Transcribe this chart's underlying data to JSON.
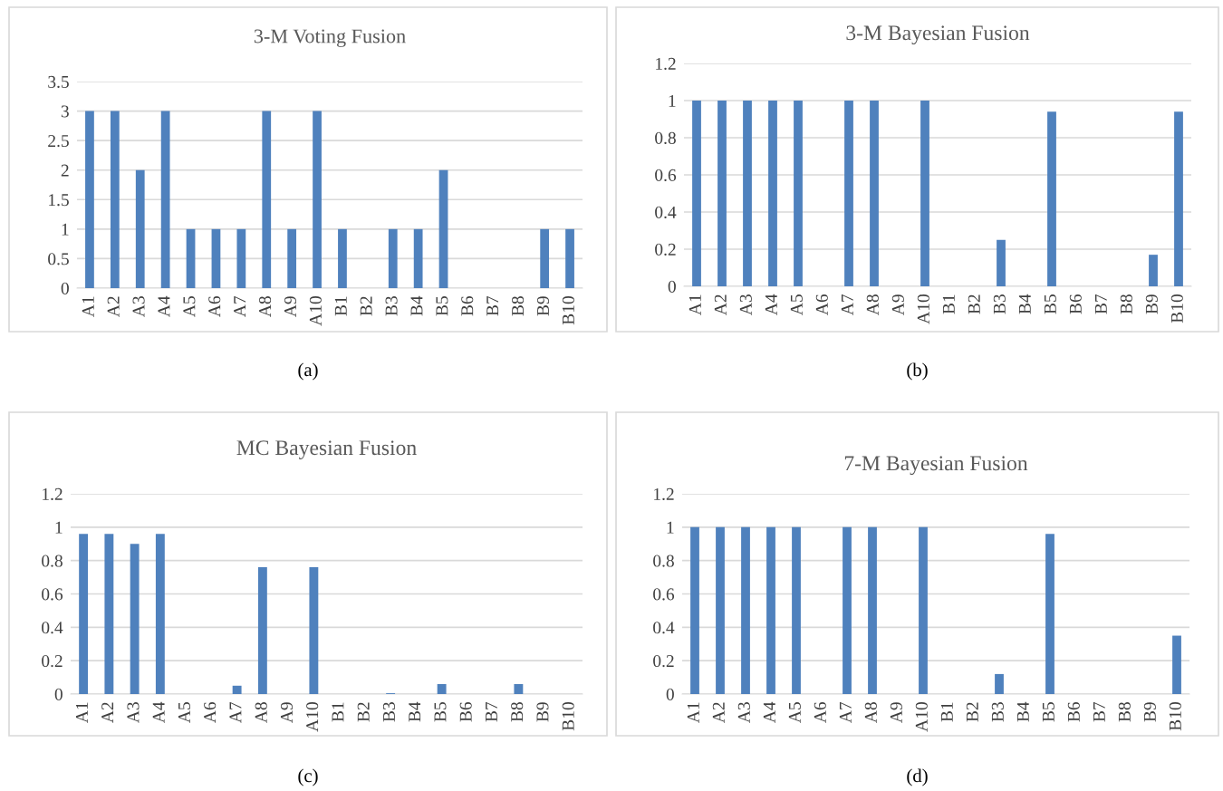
{
  "chart_data": [
    {
      "type": "bar",
      "title": "3-M Voting Fusion",
      "categories": [
        "A1",
        "A2",
        "A3",
        "A4",
        "A5",
        "A6",
        "A7",
        "A8",
        "A9",
        "A10",
        "B1",
        "B2",
        "B3",
        "B4",
        "B5",
        "B6",
        "B7",
        "B8",
        "B9",
        "B10"
      ],
      "values": [
        3,
        3,
        2,
        3,
        1,
        1,
        1,
        3,
        1,
        3,
        1,
        0,
        1,
        1,
        2,
        0,
        0,
        0,
        1,
        1
      ],
      "color": "#4f81bd",
      "ylim": [
        0,
        3.5
      ],
      "yticks": [
        0,
        0.5,
        1,
        1.5,
        2,
        2.5,
        3,
        3.5
      ],
      "grid": "y",
      "annotations": [
        "(a)"
      ]
    },
    {
      "type": "bar",
      "title": "3-M Bayesian Fusion",
      "categories": [
        "A1",
        "A2",
        "A3",
        "A4",
        "A5",
        "A6",
        "A7",
        "A8",
        "A9",
        "A10",
        "B1",
        "B2",
        "B3",
        "B4",
        "B5",
        "B6",
        "B7",
        "B8",
        "B9",
        "B10"
      ],
      "values": [
        1,
        1,
        1,
        1,
        1,
        0,
        1,
        1,
        0,
        1,
        0,
        0,
        0.25,
        0,
        0.94,
        0,
        0,
        0,
        0.17,
        0.94
      ],
      "color": "#4f81bd",
      "ylim": [
        0,
        1.2
      ],
      "yticks": [
        0,
        0.2,
        0.4,
        0.6,
        0.8,
        1,
        1.2
      ],
      "grid": "y",
      "annotations": [
        "(b)"
      ]
    },
    {
      "type": "bar",
      "title": "MC Bayesian Fusion",
      "categories": [
        "A1",
        "A2",
        "A3",
        "A4",
        "A5",
        "A6",
        "A7",
        "A8",
        "A9",
        "A10",
        "B1",
        "B2",
        "B3",
        "B4",
        "B5",
        "B6",
        "B7",
        "B8",
        "B9",
        "B10"
      ],
      "values": [
        0.96,
        0.96,
        0.9,
        0.96,
        0,
        0,
        0.05,
        0.76,
        0,
        0.76,
        0,
        0,
        0.005,
        0,
        0.06,
        0,
        0,
        0.06,
        0,
        0
      ],
      "color": "#4f81bd",
      "ylim": [
        0,
        1.2
      ],
      "yticks": [
        0,
        0.2,
        0.4,
        0.6,
        0.8,
        1,
        1.2
      ],
      "grid": "y",
      "annotations": [
        "(c)"
      ]
    },
    {
      "type": "bar",
      "title": "7-M Bayesian Fusion",
      "categories": [
        "A1",
        "A2",
        "A3",
        "A4",
        "A5",
        "A6",
        "A7",
        "A8",
        "A9",
        "A10",
        "B1",
        "B2",
        "B3",
        "B4",
        "B5",
        "B6",
        "B7",
        "B8",
        "B9",
        "B10"
      ],
      "values": [
        1,
        1,
        1,
        1,
        1,
        0,
        1,
        1,
        0,
        1,
        0,
        0,
        0.12,
        0,
        0.96,
        0,
        0,
        0,
        0,
        0.35
      ],
      "color": "#4f81bd",
      "ylim": [
        0,
        1.2
      ],
      "yticks": [
        0,
        0.2,
        0.4,
        0.6,
        0.8,
        1,
        1.2
      ],
      "grid": "y",
      "annotations": [
        "(d)"
      ]
    }
  ]
}
